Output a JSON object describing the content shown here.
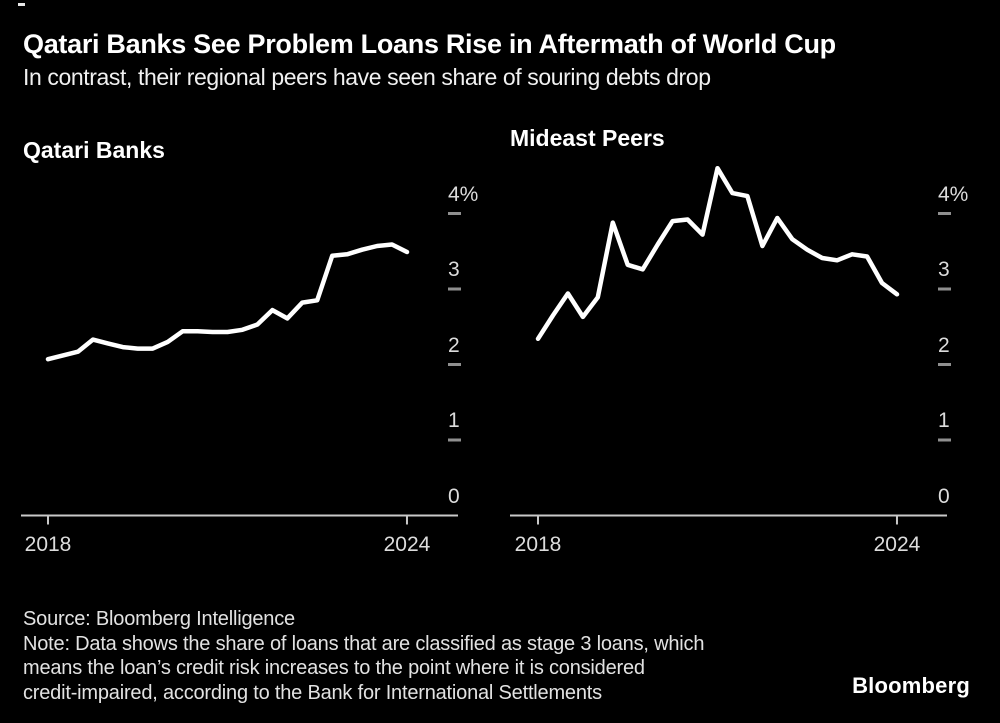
{
  "header": {
    "title": "Qatari Banks See Problem Loans Rise in Aftermath of World Cup",
    "subtitle": "In contrast, their regional peers have seen share of souring debts drop"
  },
  "footer": {
    "source": "Source: Bloomberg Intelligence",
    "note_lines": [
      "Note: Data shows the share of loans that are classified as stage 3 loans, which",
      "means the loan’s credit risk increases to the point where it is considered",
      "credit-impaired, according to the Bank for International Settlements"
    ],
    "logo": "Bloomberg"
  },
  "colors": {
    "background": "#000000",
    "series_line": "#ffffff",
    "axis_line": "#c9c9c9",
    "tick_dash": "#8f8f8f",
    "axis_text": "#dcdcdc",
    "title_text": "#ffffff"
  },
  "chart_data": [
    {
      "type": "line",
      "title": "Qatari Banks",
      "unit": "%",
      "grid": false,
      "legend": "none",
      "ylim": [
        0,
        4.75
      ],
      "xlim": [
        2018,
        2024.85
      ],
      "y_ticks": [
        {
          "label": "4%",
          "value": 4
        },
        {
          "label": "3",
          "value": 3
        },
        {
          "label": "2",
          "value": 2
        },
        {
          "label": "1",
          "value": 1
        },
        {
          "label": "0",
          "value": 0
        }
      ],
      "x_ticks": [
        {
          "label": "2018",
          "year": 2018
        },
        {
          "label": "2024",
          "year": 2024
        }
      ],
      "x": [
        2018.0,
        2018.25,
        2018.5,
        2018.75,
        2019.0,
        2019.25,
        2019.5,
        2019.75,
        2020.0,
        2020.25,
        2020.5,
        2020.75,
        2021.0,
        2021.25,
        2021.5,
        2021.75,
        2022.0,
        2022.25,
        2022.5,
        2022.75,
        2023.0,
        2023.25,
        2023.5,
        2023.75,
        2024.0
      ],
      "values": [
        2.07,
        2.12,
        2.17,
        2.33,
        2.28,
        2.23,
        2.21,
        2.21,
        2.3,
        2.44,
        2.44,
        2.43,
        2.43,
        2.46,
        2.53,
        2.72,
        2.61,
        2.82,
        2.85,
        3.44,
        3.46,
        3.52,
        3.57,
        3.59,
        3.49
      ]
    },
    {
      "type": "line",
      "title": "Mideast Peers",
      "unit": "%",
      "grid": false,
      "legend": "none",
      "ylim": [
        0,
        4.75
      ],
      "xlim": [
        2018,
        2024.85
      ],
      "y_ticks": [
        {
          "label": "4%",
          "value": 4
        },
        {
          "label": "3",
          "value": 3
        },
        {
          "label": "2",
          "value": 2
        },
        {
          "label": "1",
          "value": 1
        },
        {
          "label": "0",
          "value": 0
        }
      ],
      "x_ticks": [
        {
          "label": "2018",
          "year": 2018
        },
        {
          "label": "2024",
          "year": 2024
        }
      ],
      "x": [
        2018.0,
        2018.25,
        2018.5,
        2018.75,
        2019.0,
        2019.25,
        2019.5,
        2019.75,
        2020.0,
        2020.25,
        2020.5,
        2020.75,
        2021.0,
        2021.25,
        2021.5,
        2021.75,
        2022.0,
        2022.25,
        2022.5,
        2022.75,
        2023.0,
        2023.25,
        2023.5,
        2023.75,
        2024.0
      ],
      "values": [
        2.34,
        2.65,
        2.94,
        2.63,
        2.89,
        3.88,
        3.32,
        3.26,
        3.59,
        3.9,
        3.92,
        3.72,
        4.6,
        4.27,
        4.23,
        3.57,
        3.94,
        3.66,
        3.52,
        3.41,
        3.38,
        3.46,
        3.43,
        3.08,
        2.93
      ]
    }
  ]
}
